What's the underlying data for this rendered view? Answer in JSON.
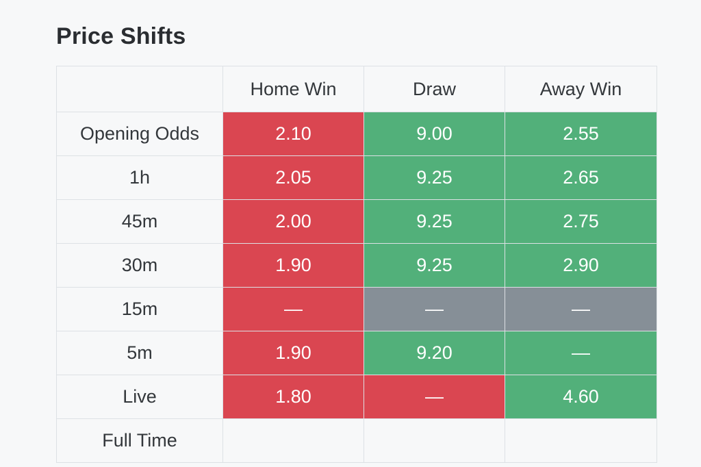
{
  "title": "Price Shifts",
  "table": {
    "headers": [
      "",
      "Home Win",
      "Draw",
      "Away Win"
    ],
    "rows": [
      {
        "label": "Opening Odds",
        "cells": [
          {
            "value": "2.10",
            "status": "red"
          },
          {
            "value": "9.00",
            "status": "green"
          },
          {
            "value": "2.55",
            "status": "green"
          }
        ]
      },
      {
        "label": "1h",
        "cells": [
          {
            "value": "2.05",
            "status": "red"
          },
          {
            "value": "9.25",
            "status": "green"
          },
          {
            "value": "2.65",
            "status": "green"
          }
        ]
      },
      {
        "label": "45m",
        "cells": [
          {
            "value": "2.00",
            "status": "red"
          },
          {
            "value": "9.25",
            "status": "green"
          },
          {
            "value": "2.75",
            "status": "green"
          }
        ]
      },
      {
        "label": "30m",
        "cells": [
          {
            "value": "1.90",
            "status": "red"
          },
          {
            "value": "9.25",
            "status": "green"
          },
          {
            "value": "2.90",
            "status": "green"
          }
        ]
      },
      {
        "label": "15m",
        "cells": [
          {
            "value": "—",
            "status": "red"
          },
          {
            "value": "—",
            "status": "gray"
          },
          {
            "value": "—",
            "status": "gray"
          }
        ]
      },
      {
        "label": "5m",
        "cells": [
          {
            "value": "1.90",
            "status": "red"
          },
          {
            "value": "9.20",
            "status": "green"
          },
          {
            "value": "—",
            "status": "green"
          }
        ]
      },
      {
        "label": "Live",
        "cells": [
          {
            "value": "1.80",
            "status": "red"
          },
          {
            "value": "—",
            "status": "red"
          },
          {
            "value": "4.60",
            "status": "green"
          }
        ]
      },
      {
        "label": "Full Time",
        "cells": [
          {
            "value": "",
            "status": "empty"
          },
          {
            "value": "",
            "status": "empty"
          },
          {
            "value": "",
            "status": "empty"
          }
        ]
      }
    ]
  },
  "colors": {
    "red": "#da4651",
    "green": "#52b07a",
    "gray": "#868f97"
  }
}
